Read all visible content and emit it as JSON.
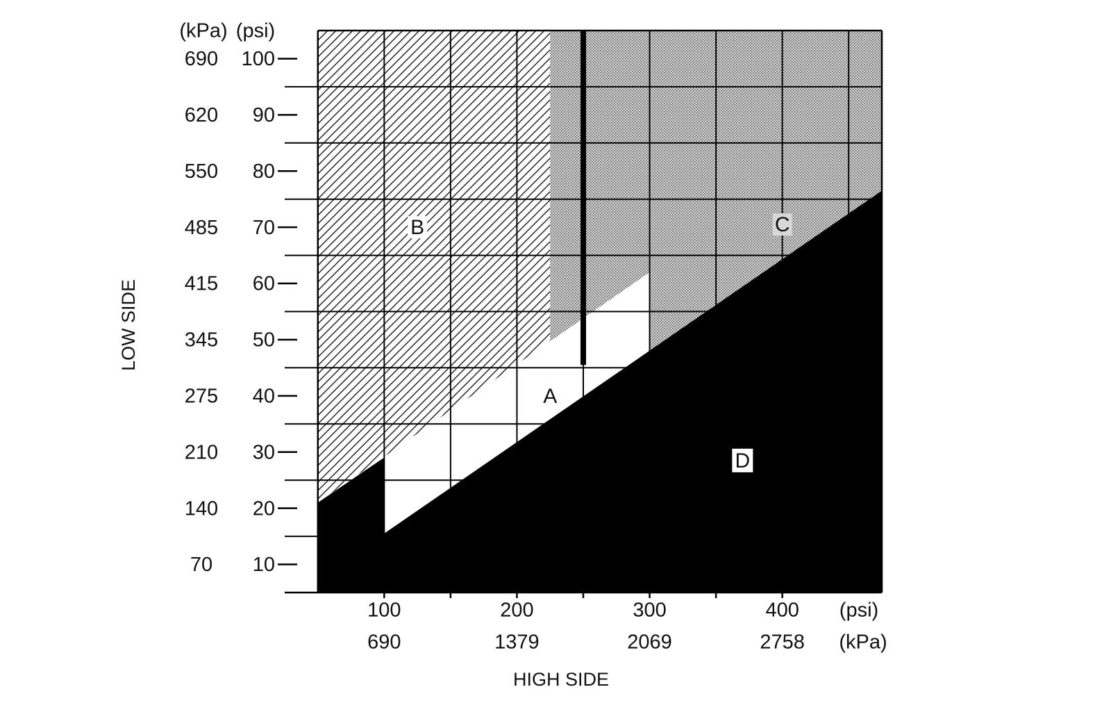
{
  "chart_data": {
    "type": "area",
    "y_axis": {
      "title": "LOW SIDE",
      "unit_headers": [
        "(kPa)",
        "(psi)"
      ],
      "ticks_psi": [
        "100",
        "90",
        "80",
        "70",
        "60",
        "50",
        "40",
        "30",
        "20",
        "10"
      ],
      "ticks_kpa": [
        "690",
        "620",
        "550",
        "485",
        "415",
        "345",
        "275",
        "210",
        "140",
        "70"
      ],
      "range_psi": [
        5,
        105
      ]
    },
    "x_axis": {
      "title": "HIGH SIDE",
      "ticks_psi": [
        "100",
        "200",
        "300",
        "400"
      ],
      "ticks_kpa": [
        "690",
        "1379",
        "2069",
        "2758"
      ],
      "unit_psi": "(psi)",
      "unit_kpa": "(kPa)",
      "range_psi": [
        25,
        475
      ]
    },
    "regions": [
      {
        "name": "A",
        "fill": "white",
        "label_at": {
          "x": 225,
          "y": 40
        }
      },
      {
        "name": "B",
        "fill": "hatched",
        "label_at": {
          "x": 125,
          "y": 70
        }
      },
      {
        "name": "C",
        "fill": "dotted",
        "label_at": {
          "x": 400,
          "y": 70.5
        }
      },
      {
        "name": "D",
        "fill": "black",
        "label_at": {
          "x": 370,
          "y": 28.5
        }
      }
    ],
    "boundaries": {
      "plot_x_range": [
        50,
        475
      ],
      "plot_y_range": [
        5,
        105
      ],
      "lower_line": [
        [
          100,
          15.5
        ],
        [
          475,
          76.5
        ]
      ],
      "upper_line": [
        [
          50,
          21
        ],
        [
          300,
          62
        ]
      ],
      "b_c_divider_x": 225,
      "c_region_lower_left_x": 300,
      "black_bar_x": 250,
      "black_bar_bottom_y": 45.5,
      "d_extra_block": {
        "x": [
          50,
          100
        ],
        "y_top": 29
      }
    },
    "grid": {
      "vertical_psi": [
        100,
        150,
        200,
        250,
        300,
        350,
        400,
        450
      ],
      "horizontal_psi": [
        15,
        25,
        35,
        45,
        55,
        65,
        75,
        85,
        95
      ],
      "y_ticks_psi": [
        10,
        20,
        30,
        40,
        50,
        60,
        70,
        80,
        90,
        100
      ],
      "x_ticks_psi": [
        100,
        150,
        200,
        250,
        300,
        350,
        400
      ]
    }
  }
}
